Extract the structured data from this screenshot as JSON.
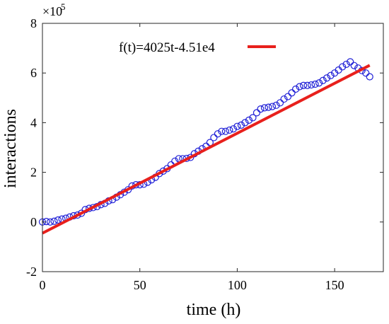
{
  "chart_data": {
    "type": "scatter",
    "xlabel": "time (h)",
    "ylabel": "interactions",
    "xlim": [
      0,
      175
    ],
    "ylim": [
      -200000,
      800000
    ],
    "xticks": [
      0,
      50,
      100,
      150
    ],
    "yticks": [
      -200000,
      0,
      200000,
      400000,
      600000,
      800000
    ],
    "xtick_labels": [
      "0",
      "50",
      "100",
      "150"
    ],
    "ytick_labels": [
      "-2",
      "0",
      "2",
      "4",
      "6",
      "8"
    ],
    "y_exponent_label": "×10",
    "y_exponent_power": "5",
    "grid": false,
    "legend_position": "top",
    "colors": {
      "observed": "#1f1fd6",
      "fit": "#e8201c"
    },
    "series": [
      {
        "kind": "markers",
        "x": [
          0,
          2,
          4,
          6,
          8,
          10,
          12,
          14,
          16,
          18,
          20,
          22,
          24,
          26,
          28,
          30,
          32,
          34,
          36,
          38,
          40,
          42,
          44,
          46,
          48,
          50,
          52,
          54,
          56,
          58,
          60,
          62,
          64,
          66,
          68,
          70,
          72,
          74,
          76,
          78,
          80,
          82,
          84,
          86,
          88,
          90,
          92,
          94,
          96,
          98,
          100,
          102,
          104,
          106,
          108,
          110,
          112,
          114,
          116,
          118,
          120,
          122,
          124,
          126,
          128,
          130,
          132,
          134,
          136,
          138,
          140,
          142,
          144,
          146,
          148,
          150,
          152,
          154,
          156,
          158,
          160,
          162,
          164,
          166,
          168
        ],
        "y": [
          0,
          2000,
          0,
          3000,
          8000,
          12000,
          15000,
          20000,
          25000,
          28000,
          35000,
          50000,
          55000,
          58000,
          62000,
          70000,
          75000,
          85000,
          90000,
          100000,
          110000,
          120000,
          130000,
          145000,
          150000,
          150000,
          152000,
          160000,
          170000,
          180000,
          195000,
          205000,
          215000,
          230000,
          245000,
          255000,
          255000,
          256000,
          260000,
          275000,
          285000,
          295000,
          305000,
          320000,
          340000,
          355000,
          365000,
          365000,
          370000,
          375000,
          385000,
          390000,
          400000,
          410000,
          420000,
          440000,
          455000,
          460000,
          462000,
          465000,
          470000,
          480000,
          495000,
          505000,
          520000,
          535000,
          545000,
          550000,
          550000,
          552000,
          555000,
          560000,
          570000,
          580000,
          590000,
          600000,
          612000,
          625000,
          635000,
          645000,
          630000,
          620000,
          610000,
          600000,
          585000
        ]
      },
      {
        "kind": "line",
        "name": "f(t)=4025t-4.51e4",
        "x": [
          0,
          168
        ],
        "y": [
          -45100,
          631100
        ]
      }
    ]
  }
}
